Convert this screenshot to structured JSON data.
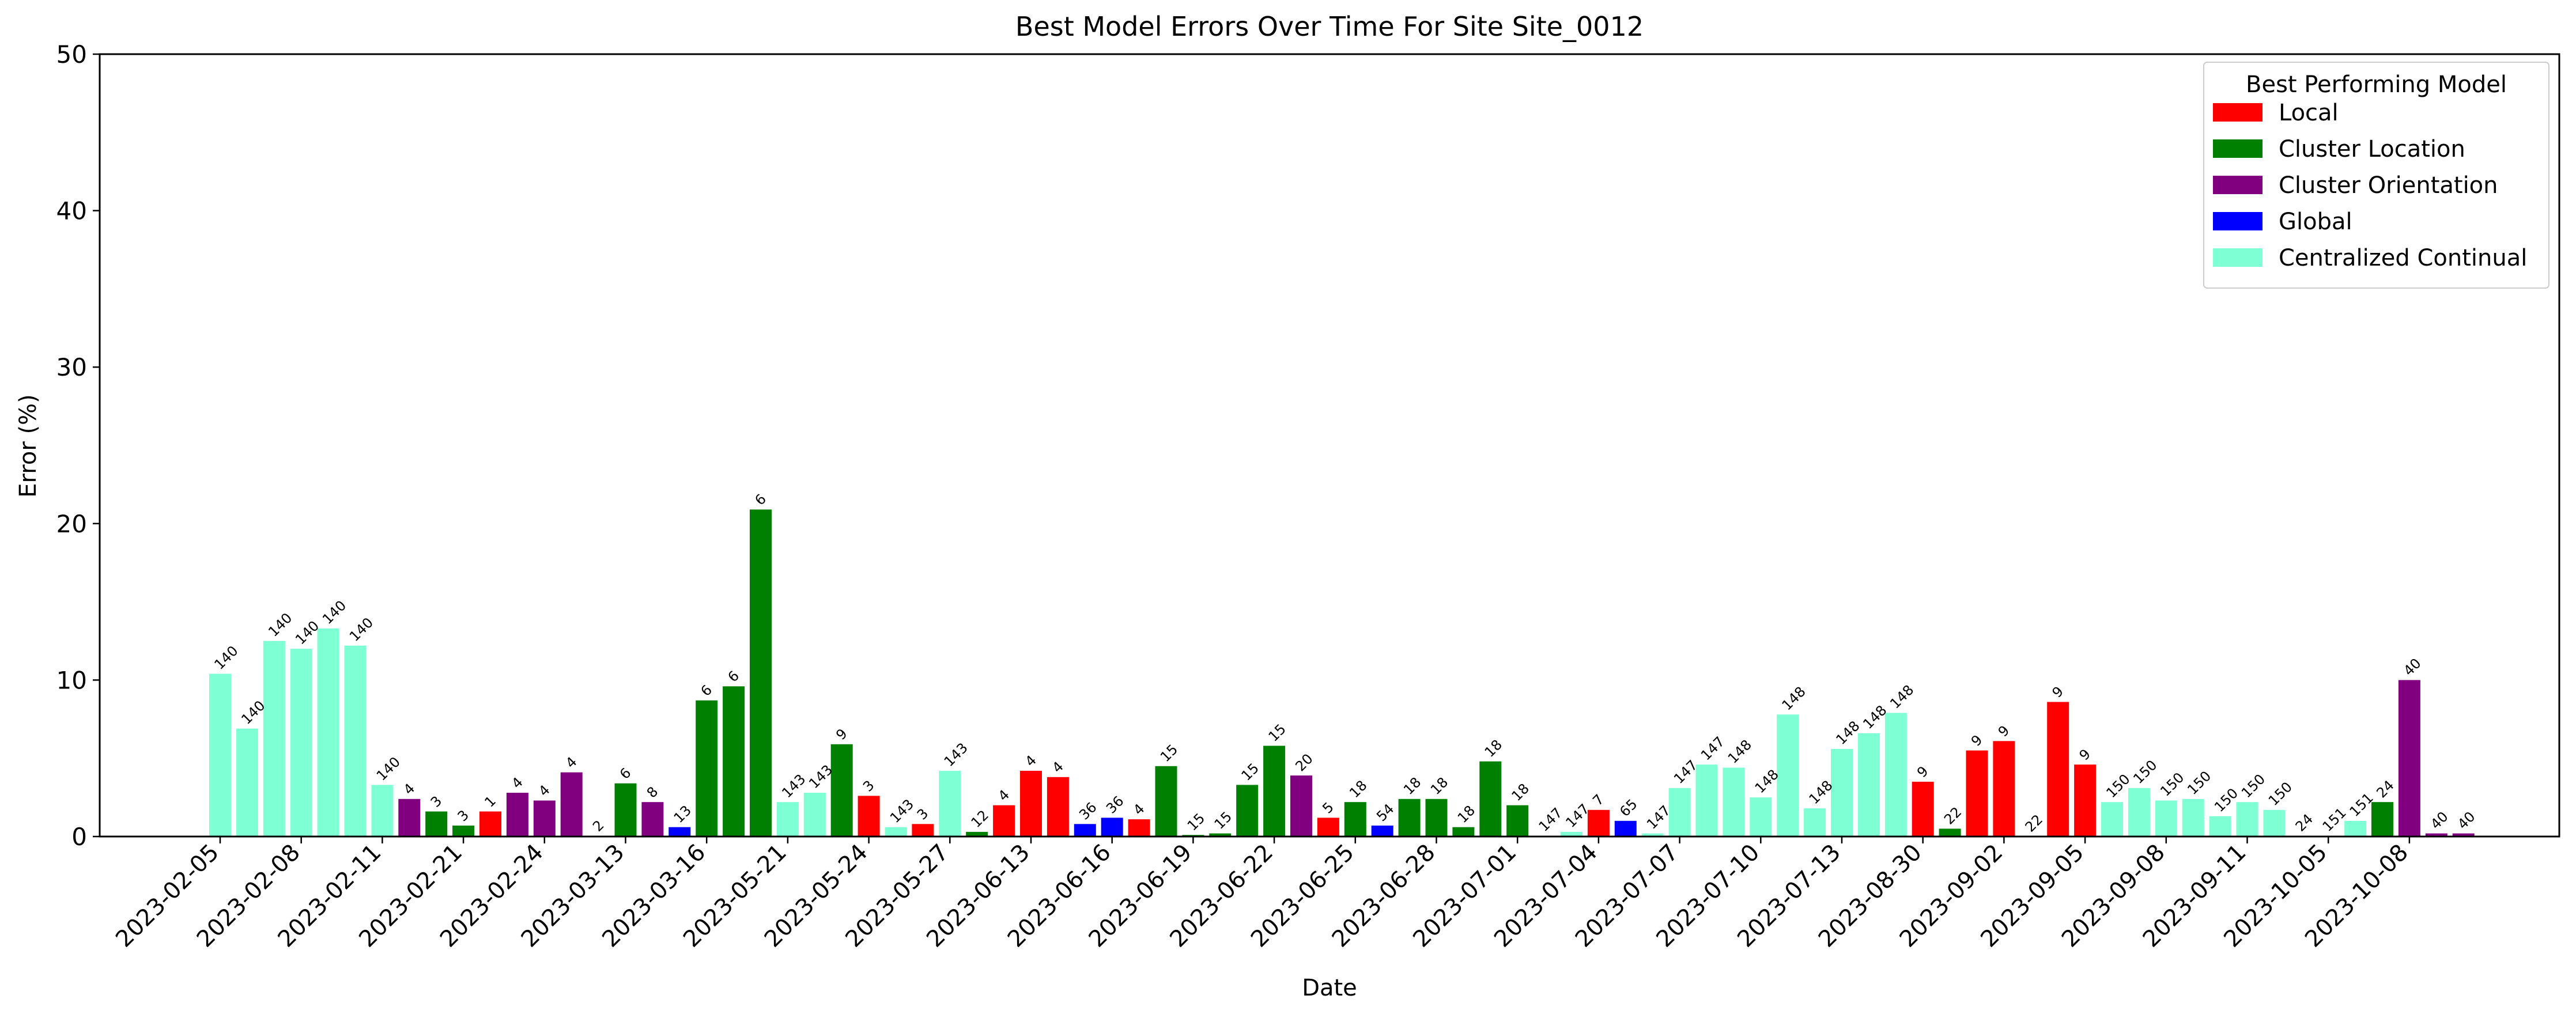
{
  "chart_data": {
    "type": "bar",
    "title": "Best Model Errors Over Time For Site Site_0012",
    "xlabel": "Date",
    "ylabel": "Error (%)",
    "ylim": [
      0,
      50
    ],
    "yticks": [
      0,
      10,
      20,
      30,
      40,
      50
    ],
    "grid": false,
    "legend": {
      "title": "Best Performing Model",
      "placement": "top-right",
      "items": [
        {
          "name": "Local",
          "color": "#ff0000"
        },
        {
          "name": "Cluster Location",
          "color": "#008000"
        },
        {
          "name": "Cluster Orientation",
          "color": "#800080"
        },
        {
          "name": "Global",
          "color": "#0000ff"
        },
        {
          "name": "Centralized Continual",
          "color": "#7fffd4"
        }
      ]
    },
    "xtick_labels": [
      "2023-02-05",
      "2023-02-08",
      "2023-02-11",
      "2023-02-21",
      "2023-02-24",
      "2023-03-13",
      "2023-03-16",
      "2023-05-21",
      "2023-05-24",
      "2023-05-27",
      "2023-06-13",
      "2023-06-16",
      "2023-06-19",
      "2023-06-22",
      "2023-06-25",
      "2023-06-28",
      "2023-07-01",
      "2023-07-04",
      "2023-07-07",
      "2023-07-10",
      "2023-07-13",
      "2023-08-30",
      "2023-09-02",
      "2023-09-05",
      "2023-09-08",
      "2023-09-11",
      "2023-10-05",
      "2023-10-08"
    ],
    "bars": [
      {
        "value": 10.4,
        "label": "140",
        "model": "Centralized Continual"
      },
      {
        "value": 6.9,
        "label": "140",
        "model": "Centralized Continual"
      },
      {
        "value": 12.5,
        "label": "140",
        "model": "Centralized Continual"
      },
      {
        "value": 12.0,
        "label": "140",
        "model": "Centralized Continual"
      },
      {
        "value": 13.3,
        "label": "140",
        "model": "Centralized Continual"
      },
      {
        "value": 12.2,
        "label": "140",
        "model": "Centralized Continual"
      },
      {
        "value": 3.3,
        "label": "140",
        "model": "Centralized Continual"
      },
      {
        "value": 2.4,
        "label": "4",
        "model": "Cluster Orientation"
      },
      {
        "value": 1.6,
        "label": "3",
        "model": "Cluster Location"
      },
      {
        "value": 0.7,
        "label": "3",
        "model": "Cluster Location"
      },
      {
        "value": 1.6,
        "label": "1",
        "model": "Local"
      },
      {
        "value": 2.8,
        "label": "4",
        "model": "Cluster Orientation"
      },
      {
        "value": 2.3,
        "label": "4",
        "model": "Cluster Orientation"
      },
      {
        "value": 4.1,
        "label": "4",
        "model": "Cluster Orientation"
      },
      {
        "value": 0.05,
        "label": "2",
        "model": "Cluster Orientation"
      },
      {
        "value": 3.4,
        "label": "6",
        "model": "Cluster Location"
      },
      {
        "value": 2.2,
        "label": "8",
        "model": "Cluster Orientation"
      },
      {
        "value": 0.6,
        "label": "13",
        "model": "Global"
      },
      {
        "value": 8.7,
        "label": "6",
        "model": "Cluster Location"
      },
      {
        "value": 9.6,
        "label": "6",
        "model": "Cluster Location"
      },
      {
        "value": 20.9,
        "label": "6",
        "model": "Cluster Location"
      },
      {
        "value": 2.2,
        "label": "143",
        "model": "Centralized Continual"
      },
      {
        "value": 2.8,
        "label": "143",
        "model": "Centralized Continual"
      },
      {
        "value": 5.9,
        "label": "9",
        "model": "Cluster Location"
      },
      {
        "value": 2.6,
        "label": "3",
        "model": "Local"
      },
      {
        "value": 0.6,
        "label": "143",
        "model": "Centralized Continual"
      },
      {
        "value": 0.8,
        "label": "3",
        "model": "Local"
      },
      {
        "value": 4.2,
        "label": "143",
        "model": "Centralized Continual"
      },
      {
        "value": 0.3,
        "label": "12",
        "model": "Cluster Location"
      },
      {
        "value": 2.0,
        "label": "4",
        "model": "Local"
      },
      {
        "value": 4.2,
        "label": "4",
        "model": "Local"
      },
      {
        "value": 3.8,
        "label": "4",
        "model": "Local"
      },
      {
        "value": 0.8,
        "label": "36",
        "model": "Global"
      },
      {
        "value": 1.2,
        "label": "36",
        "model": "Global"
      },
      {
        "value": 1.1,
        "label": "4",
        "model": "Local"
      },
      {
        "value": 4.5,
        "label": "15",
        "model": "Cluster Location"
      },
      {
        "value": 0.1,
        "label": "15",
        "model": "Cluster Location"
      },
      {
        "value": 0.2,
        "label": "15",
        "model": "Cluster Location"
      },
      {
        "value": 3.3,
        "label": "15",
        "model": "Cluster Location"
      },
      {
        "value": 5.8,
        "label": "15",
        "model": "Cluster Location"
      },
      {
        "value": 3.9,
        "label": "20",
        "model": "Cluster Orientation"
      },
      {
        "value": 1.2,
        "label": "5",
        "model": "Local"
      },
      {
        "value": 2.2,
        "label": "18",
        "model": "Cluster Location"
      },
      {
        "value": 0.7,
        "label": "54",
        "model": "Global"
      },
      {
        "value": 2.4,
        "label": "18",
        "model": "Cluster Location"
      },
      {
        "value": 2.4,
        "label": "18",
        "model": "Cluster Location"
      },
      {
        "value": 0.6,
        "label": "18",
        "model": "Cluster Location"
      },
      {
        "value": 4.8,
        "label": "18",
        "model": "Cluster Location"
      },
      {
        "value": 2.0,
        "label": "18",
        "model": "Cluster Location"
      },
      {
        "value": 0.05,
        "label": "147",
        "model": "Centralized Continual"
      },
      {
        "value": 0.3,
        "label": "147",
        "model": "Centralized Continual"
      },
      {
        "value": 1.7,
        "label": "7",
        "model": "Local"
      },
      {
        "value": 1.0,
        "label": "65",
        "model": "Global"
      },
      {
        "value": 0.2,
        "label": "147",
        "model": "Centralized Continual"
      },
      {
        "value": 3.1,
        "label": "147",
        "model": "Centralized Continual"
      },
      {
        "value": 4.6,
        "label": "147",
        "model": "Centralized Continual"
      },
      {
        "value": 4.4,
        "label": "148",
        "model": "Centralized Continual"
      },
      {
        "value": 2.5,
        "label": "148",
        "model": "Centralized Continual"
      },
      {
        "value": 7.8,
        "label": "148",
        "model": "Centralized Continual"
      },
      {
        "value": 1.8,
        "label": "148",
        "model": "Centralized Continual"
      },
      {
        "value": 5.6,
        "label": "148",
        "model": "Centralized Continual"
      },
      {
        "value": 6.6,
        "label": "148",
        "model": "Centralized Continual"
      },
      {
        "value": 7.9,
        "label": "148",
        "model": "Centralized Continual"
      },
      {
        "value": 3.5,
        "label": "9",
        "model": "Local"
      },
      {
        "value": 0.5,
        "label": "22",
        "model": "Cluster Location"
      },
      {
        "value": 5.5,
        "label": "9",
        "model": "Local"
      },
      {
        "value": 6.1,
        "label": "9",
        "model": "Local"
      },
      {
        "value": 0.02,
        "label": "22",
        "model": "Cluster Location"
      },
      {
        "value": 8.6,
        "label": "9",
        "model": "Local"
      },
      {
        "value": 4.6,
        "label": "9",
        "model": "Local"
      },
      {
        "value": 2.2,
        "label": "150",
        "model": "Centralized Continual"
      },
      {
        "value": 3.1,
        "label": "150",
        "model": "Centralized Continual"
      },
      {
        "value": 2.3,
        "label": "150",
        "model": "Centralized Continual"
      },
      {
        "value": 2.4,
        "label": "150",
        "model": "Centralized Continual"
      },
      {
        "value": 1.3,
        "label": "150",
        "model": "Centralized Continual"
      },
      {
        "value": 2.2,
        "label": "150",
        "model": "Centralized Continual"
      },
      {
        "value": 1.7,
        "label": "150",
        "model": "Centralized Continual"
      },
      {
        "value": 0.05,
        "label": "24",
        "model": "Cluster Location"
      },
      {
        "value": 0.05,
        "label": "151",
        "model": "Centralized Continual"
      },
      {
        "value": 1.0,
        "label": "151",
        "model": "Centralized Continual"
      },
      {
        "value": 2.2,
        "label": "24",
        "model": "Cluster Location"
      },
      {
        "value": 10.0,
        "label": "40",
        "model": "Cluster Orientation"
      },
      {
        "value": 0.2,
        "label": "40",
        "model": "Cluster Orientation"
      },
      {
        "value": 0.2,
        "label": "40",
        "model": "Cluster Orientation"
      }
    ]
  }
}
